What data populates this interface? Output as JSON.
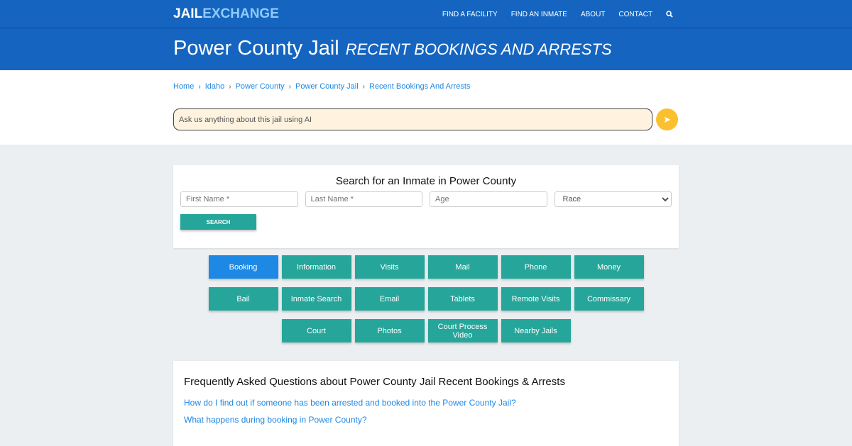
{
  "nav": {
    "logo_a": "JAIL",
    "logo_b": "EXCHANGE",
    "items": [
      "FIND A FACILITY",
      "FIND AN INMATE",
      "ABOUT",
      "CONTACT"
    ],
    "search_icon": "search-icon"
  },
  "header": {
    "title": "Power County Jail",
    "subtitle": "RECENT BOOKINGS AND ARRESTS"
  },
  "breadcrumb": [
    "Home",
    "Idaho",
    "Power County",
    "Power County Jail",
    "Recent Bookings And Arrests"
  ],
  "ai": {
    "placeholder": "Ask us anything about this jail using AI",
    "send_icon": "paper-plane-icon"
  },
  "search": {
    "title": "Search for an Inmate in Power County",
    "first": "First Name *",
    "last": "Last Name *",
    "age": "Age",
    "race": "Race",
    "button": "SEARCH"
  },
  "buttons": [
    "Booking",
    "Information",
    "Visits",
    "Mail",
    "Phone",
    "Money",
    "Bail",
    "Inmate Search",
    "Email",
    "Tablets",
    "Remote Visits",
    "Commissary",
    "Court",
    "Photos",
    "Court Process Video",
    "Nearby Jails"
  ],
  "active_button": "Booking",
  "faq": {
    "title": "Frequently Asked Questions about Power County Jail Recent Bookings & Arrests",
    "questions": [
      "How do I find out if someone has been arrested and booked into the Power County Jail?",
      "What happens during booking in Power County?"
    ]
  },
  "colors": {
    "brand": "#1565c0",
    "teal": "#26a69a",
    "active": "#1e88e5",
    "accent": "#fbc02d"
  }
}
